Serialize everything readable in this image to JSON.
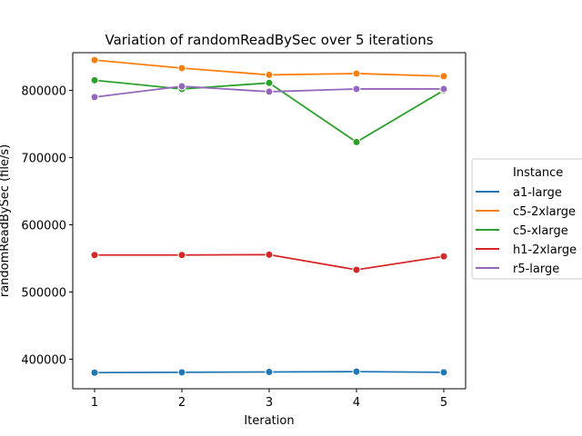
{
  "chart_data": {
    "type": "line",
    "title": "Variation of randomReadBySec over 5 iterations",
    "xlabel": "Iteration",
    "ylabel": "randomReadBySec (file/s)",
    "x": [
      1,
      2,
      3,
      4,
      5
    ],
    "xticks": [
      "1",
      "2",
      "3",
      "4",
      "5"
    ],
    "yticks": [
      400000,
      500000,
      600000,
      700000,
      800000
    ],
    "ytick_labels": [
      "400000",
      "500000",
      "600000",
      "700000",
      "800000"
    ],
    "xlim": [
      0.75,
      5.25
    ],
    "ylim": [
      356000,
      856000
    ],
    "grid": false,
    "legend_position": "right",
    "legend_title": "Instance",
    "series": [
      {
        "name": "a1-large",
        "color": "#1f77b4",
        "values": [
          380000,
          380500,
          381000,
          381500,
          380500
        ]
      },
      {
        "name": "c5-2xlarge",
        "color": "#ff7f0e",
        "values": [
          845000,
          833000,
          823000,
          825000,
          821000
        ]
      },
      {
        "name": "c5-xlarge",
        "color": "#2ca02c",
        "values": [
          815000,
          802000,
          811000,
          723000,
          800000
        ]
      },
      {
        "name": "h1-2xlarge",
        "color": "#d62728",
        "values": [
          555000,
          555000,
          555500,
          533000,
          553000
        ]
      },
      {
        "name": "r5-large",
        "color": "#9467bd",
        "values": [
          790000,
          806000,
          798000,
          802000,
          802000
        ]
      }
    ]
  }
}
